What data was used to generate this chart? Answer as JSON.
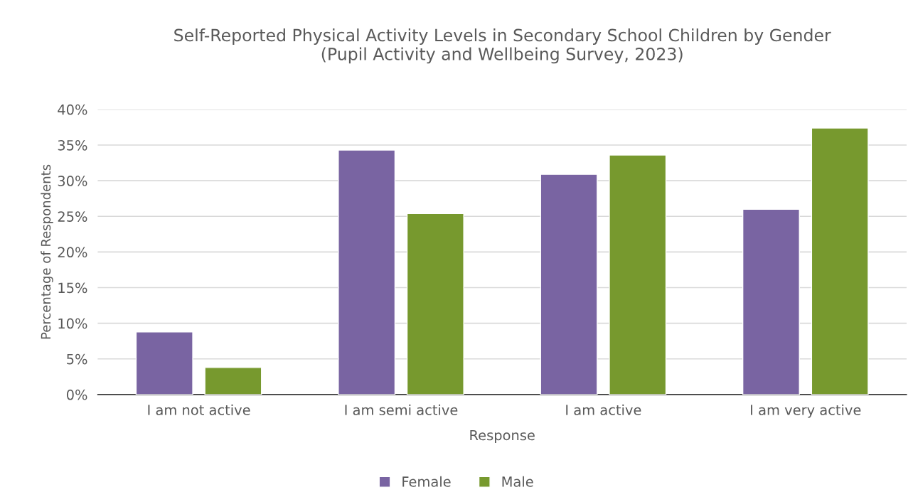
{
  "chart_data": {
    "type": "bar",
    "title": "Self-Reported Physical Activity Levels in Secondary School Children by Gender\n(Pupil Activity and Wellbeing Survey, 2023)",
    "xlabel": "Response",
    "ylabel": "Percentage of Respondents",
    "categories": [
      "I am not active",
      "I am semi active",
      "I am active",
      "I am very active"
    ],
    "series": [
      {
        "name": "Female",
        "color": "#7964a2",
        "values": [
          8.8,
          34.3,
          30.9,
          26.0
        ]
      },
      {
        "name": "Male",
        "color": "#77992e",
        "values": [
          3.8,
          25.4,
          33.6,
          37.4
        ]
      }
    ],
    "ylim": [
      0,
      40
    ],
    "yticks": [
      {
        "value": 0,
        "label": "0%"
      },
      {
        "value": 5,
        "label": "5%"
      },
      {
        "value": 10,
        "label": "10%"
      },
      {
        "value": 15,
        "label": "15%"
      },
      {
        "value": 20,
        "label": "20%"
      },
      {
        "value": 25,
        "label": "25%"
      },
      {
        "value": 30,
        "label": "30%"
      },
      {
        "value": 35,
        "label": "35%"
      },
      {
        "value": 40,
        "label": "40%"
      }
    ],
    "grid": "y",
    "legend": "bottom"
  }
}
